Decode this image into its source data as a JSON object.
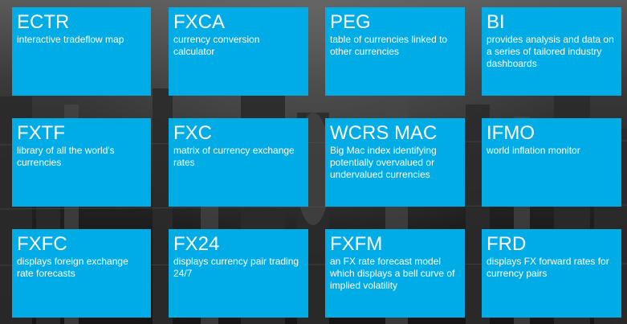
{
  "tiles": [
    {
      "code": "ECTR",
      "desc": "interactive tradeflow map"
    },
    {
      "code": "FXCA",
      "desc": "currency conversion calculator"
    },
    {
      "code": "PEG",
      "desc": "table of currencies linked to other currencies"
    },
    {
      "code": "BI",
      "desc": "provides analysis and data on a series of tailored industry dashboards"
    },
    {
      "code": "FXTF",
      "desc": "library of all the world's currencies"
    },
    {
      "code": "FXC",
      "desc": "matrix of currency exchange rates"
    },
    {
      "code": "WCRS MAC",
      "desc": "Big Mac index identifying potentially overvalued or undervalued currencies"
    },
    {
      "code": "IFMO",
      "desc": "world inflation monitor"
    },
    {
      "code": "FXFC",
      "desc": "displays foreign exchange rate forecasts"
    },
    {
      "code": "FX24",
      "desc": "displays currency pair trading 24/7"
    },
    {
      "code": "FXFM",
      "desc": "an FX rate forecast model which displays a bell curve of implied volatility"
    },
    {
      "code": "FRD",
      "desc": "displays FX forward rates for currency pairs"
    }
  ],
  "colors": {
    "tile_background": "#00ace6",
    "tile_text": "#ffffff",
    "page_background": "#1c1c1c"
  }
}
